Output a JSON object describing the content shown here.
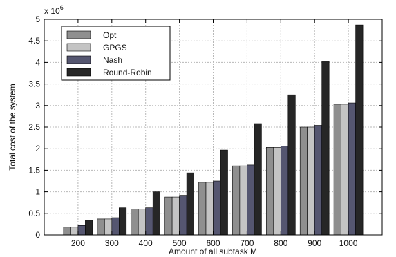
{
  "chart_data": {
    "type": "bar",
    "categories": [
      "200",
      "300",
      "400",
      "500",
      "600",
      "700",
      "800",
      "900",
      "1000"
    ],
    "series": [
      {
        "name": "Opt",
        "color": "#8f8f8f",
        "values": [
          0.18,
          0.37,
          0.6,
          0.88,
          1.22,
          1.6,
          2.03,
          2.5,
          3.03
        ]
      },
      {
        "name": "GPGS",
        "color": "#c4c4c4",
        "values": [
          0.18,
          0.37,
          0.6,
          0.88,
          1.22,
          1.6,
          2.03,
          2.5,
          3.03
        ]
      },
      {
        "name": "Nash",
        "color": "#555670",
        "values": [
          0.22,
          0.4,
          0.63,
          0.92,
          1.25,
          1.62,
          2.06,
          2.54,
          3.06
        ]
      },
      {
        "name": "Round-Robin",
        "color": "#262626",
        "values": [
          0.34,
          0.63,
          1.0,
          1.44,
          1.97,
          2.58,
          3.25,
          4.03,
          4.87
        ]
      }
    ],
    "xlabel": "Amount of all subtask M",
    "ylabel": "Total cost of the system",
    "y_multiplier_label": "x 10",
    "y_multiplier_exponent": "6",
    "ylim": [
      0,
      5
    ],
    "yticks": [
      "0",
      "0.5",
      "1",
      "1.5",
      "2",
      "2.5",
      "3",
      "3.5",
      "4",
      "4.5",
      "5"
    ],
    "grid": true,
    "legend_position": "top-left"
  }
}
